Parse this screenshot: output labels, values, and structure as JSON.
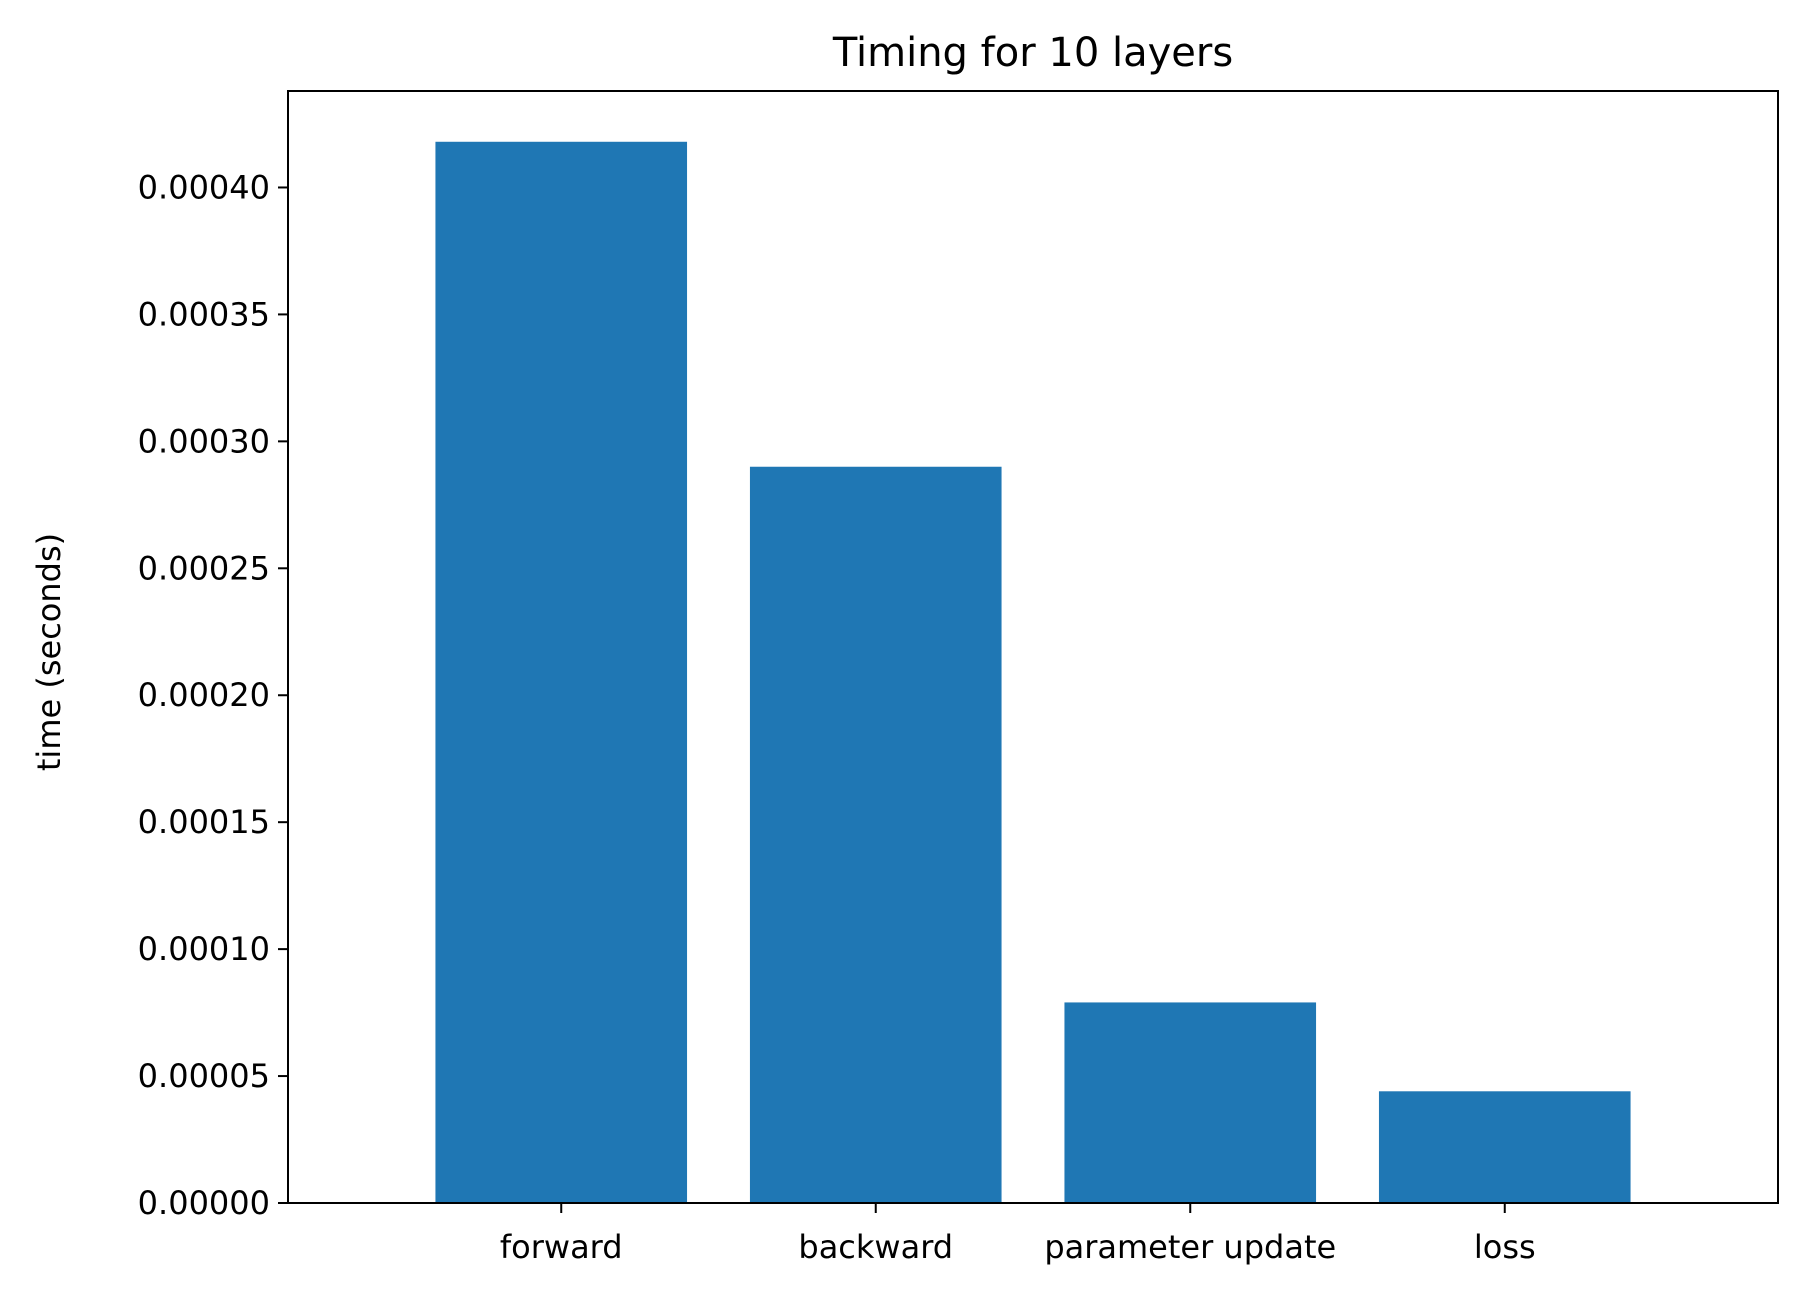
{
  "chart_data": {
    "type": "bar",
    "title": "Timing for 10 layers",
    "xlabel": "",
    "ylabel": "time (seconds)",
    "categories": [
      "forward",
      "backward",
      "parameter update",
      "loss"
    ],
    "values": [
      0.000418,
      0.00029,
      7.9e-05,
      4.4e-05
    ],
    "ylim": [
      0,
      0.000438
    ],
    "yticks": [
      0.0,
      5e-05,
      0.0001,
      0.00015,
      0.0002,
      0.00025,
      0.0003,
      0.00035,
      0.0004
    ],
    "ytick_labels": [
      "0.00000",
      "0.00005",
      "0.00010",
      "0.00015",
      "0.00020",
      "0.00025",
      "0.00030",
      "0.00035",
      "0.00040"
    ],
    "grid": false,
    "bar_color": "#1f77b4"
  }
}
